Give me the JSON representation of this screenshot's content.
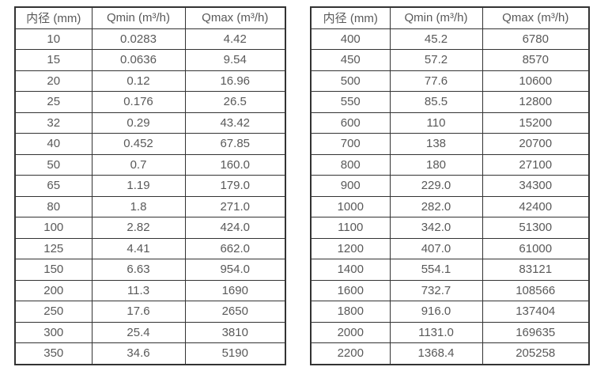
{
  "colors": {
    "border": "#333333",
    "text": "#595959",
    "background": "#ffffff"
  },
  "tables": [
    {
      "name": "flow-table-small-diameters",
      "headers": [
        "内径 (mm)",
        "Qmin (m³/h)",
        "Qmax (m³/h)"
      ],
      "rows": [
        [
          "10",
          "0.0283",
          "4.42"
        ],
        [
          "15",
          "0.0636",
          "9.54"
        ],
        [
          "20",
          "0.12",
          "16.96"
        ],
        [
          "25",
          "0.176",
          "26.5"
        ],
        [
          "32",
          "0.29",
          "43.42"
        ],
        [
          "40",
          "0.452",
          "67.85"
        ],
        [
          "50",
          "0.7",
          "160.0"
        ],
        [
          "65",
          "1.19",
          "179.0"
        ],
        [
          "80",
          "1.8",
          "271.0"
        ],
        [
          "100",
          "2.82",
          "424.0"
        ],
        [
          "125",
          "4.41",
          "662.0"
        ],
        [
          "150",
          "6.63",
          "954.0"
        ],
        [
          "200",
          "11.3",
          "1690"
        ],
        [
          "250",
          "17.6",
          "2650"
        ],
        [
          "300",
          "25.4",
          "3810"
        ],
        [
          "350",
          "34.6",
          "5190"
        ]
      ]
    },
    {
      "name": "flow-table-large-diameters",
      "headers": [
        "内径 (mm)",
        "Qmin (m³/h)",
        "Qmax (m³/h)"
      ],
      "rows": [
        [
          "400",
          "45.2",
          "6780"
        ],
        [
          "450",
          "57.2",
          "8570"
        ],
        [
          "500",
          "77.6",
          "10600"
        ],
        [
          "550",
          "85.5",
          "12800"
        ],
        [
          "600",
          "110",
          "15200"
        ],
        [
          "700",
          "138",
          "20700"
        ],
        [
          "800",
          "180",
          "27100"
        ],
        [
          "900",
          "229.0",
          "34300"
        ],
        [
          "1000",
          "282.0",
          "42400"
        ],
        [
          "1100",
          "342.0",
          "51300"
        ],
        [
          "1200",
          "407.0",
          "61000"
        ],
        [
          "1400",
          "554.1",
          "83121"
        ],
        [
          "1600",
          "732.7",
          "108566"
        ],
        [
          "1800",
          "916.0",
          "137404"
        ],
        [
          "2000",
          "1131.0",
          "169635"
        ],
        [
          "2200",
          "1368.4",
          "205258"
        ]
      ]
    }
  ],
  "header_names": [
    "header-diameter",
    "header-qmin",
    "header-qmax"
  ]
}
